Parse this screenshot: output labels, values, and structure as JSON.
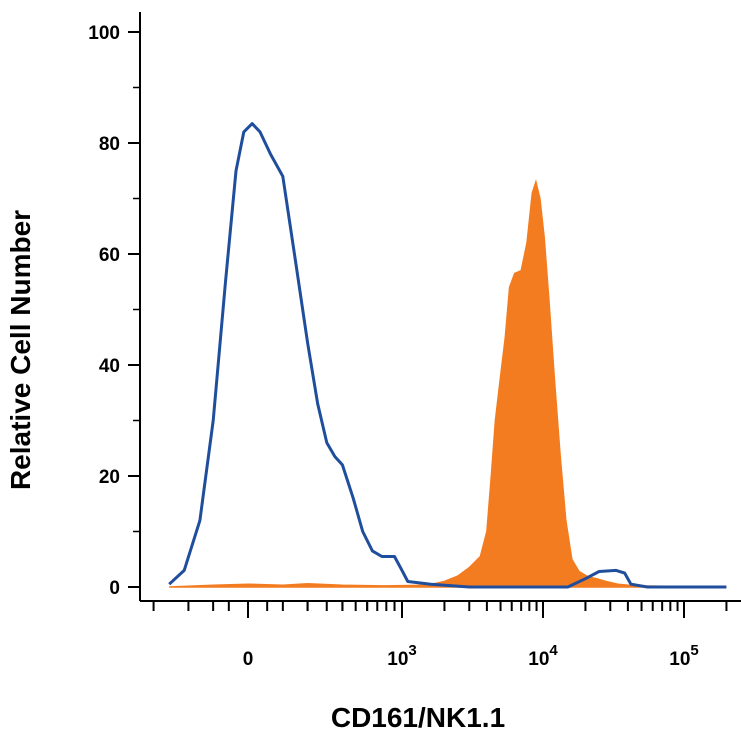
{
  "chart_data": {
    "type": "area",
    "xlabel": "CD161/NK1.1",
    "ylabel": "Relative Cell Number",
    "x_scale": "biexponential",
    "ylim": [
      0,
      100
    ],
    "y_ticks": [
      {
        "value": 0,
        "label": "0"
      },
      {
        "value": 20,
        "label": "20"
      },
      {
        "value": 40,
        "label": "40"
      },
      {
        "value": 60,
        "label": "60"
      },
      {
        "value": 80,
        "label": "80"
      },
      {
        "value": 100,
        "label": "100"
      }
    ],
    "x_ticks": [
      {
        "value": 0,
        "base": "0",
        "exp": ""
      },
      {
        "value": 1000,
        "base": "10",
        "exp": "3"
      },
      {
        "value": 10000,
        "base": "10",
        "exp": "4"
      },
      {
        "value": 100000,
        "base": "10",
        "exp": "5"
      }
    ],
    "series": [
      {
        "style": "outline",
        "color": "#1f4e9c",
        "points": [
          [
            -600,
            0
          ],
          [
            -300,
            0.5
          ],
          [
            -220,
            3
          ],
          [
            -150,
            12
          ],
          [
            -100,
            30
          ],
          [
            -60,
            55
          ],
          [
            -30,
            75
          ],
          [
            -10,
            82
          ],
          [
            10,
            83.5
          ],
          [
            30,
            82
          ],
          [
            60,
            78
          ],
          [
            100,
            74
          ],
          [
            150,
            58
          ],
          [
            200,
            44
          ],
          [
            250,
            33
          ],
          [
            300,
            26
          ],
          [
            350,
            23.5
          ],
          [
            400,
            22
          ],
          [
            480,
            16
          ],
          [
            560,
            10
          ],
          [
            650,
            6.5
          ],
          [
            750,
            5.5
          ],
          [
            900,
            5.5
          ],
          [
            1000,
            3
          ],
          [
            1100,
            1
          ],
          [
            1600,
            0.5
          ],
          [
            3000,
            0
          ],
          [
            15000,
            0
          ],
          [
            20000,
            1.5
          ],
          [
            25000,
            2.8
          ],
          [
            33000,
            3
          ],
          [
            38000,
            2.5
          ],
          [
            42000,
            0.5
          ],
          [
            55000,
            0
          ],
          [
            200000,
            0
          ]
        ]
      },
      {
        "style": "filled",
        "color": "#f47c20",
        "points": [
          [
            -300,
            0
          ],
          [
            -100,
            0.3
          ],
          [
            0,
            0.5
          ],
          [
            100,
            0.3
          ],
          [
            200,
            0.6
          ],
          [
            400,
            0.3
          ],
          [
            800,
            0.2
          ],
          [
            1500,
            0.3
          ],
          [
            2000,
            1
          ],
          [
            2500,
            2
          ],
          [
            3000,
            3.5
          ],
          [
            3600,
            5.5
          ],
          [
            4000,
            10
          ],
          [
            4300,
            20
          ],
          [
            4600,
            30
          ],
          [
            5000,
            38
          ],
          [
            5400,
            45
          ],
          [
            5800,
            54
          ],
          [
            6300,
            56.5
          ],
          [
            7000,
            57
          ],
          [
            7700,
            62
          ],
          [
            8400,
            71
          ],
          [
            8900,
            73
          ],
          [
            9500,
            70
          ],
          [
            10200,
            63
          ],
          [
            11000,
            52
          ],
          [
            12000,
            38
          ],
          [
            13200,
            24
          ],
          [
            14500,
            12
          ],
          [
            16000,
            5
          ],
          [
            18000,
            2.8
          ],
          [
            21000,
            1.8
          ],
          [
            24000,
            1.5
          ],
          [
            28000,
            1
          ],
          [
            34000,
            0.5
          ],
          [
            45000,
            0.2
          ],
          [
            200000,
            0
          ]
        ]
      }
    ]
  }
}
